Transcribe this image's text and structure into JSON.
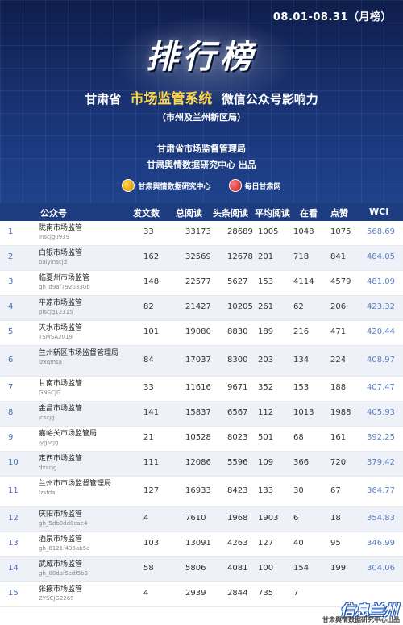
{
  "header": {
    "date_range": "08.01-08.31（月榜）",
    "big_title": "排行榜",
    "subtitle_left": "甘肃省",
    "subtitle_highlight": "市场监管系统",
    "subtitle_right": "微信公众号影响力",
    "subtitle2": "（市州及兰州新区局）",
    "org1": "甘肃省市场监督管理局",
    "org2": "甘肃舆情数据研究中心 出品",
    "logo1": "甘肃舆情数据研究中心",
    "logo2": "每日甘肃网"
  },
  "table": {
    "columns": [
      "公众号",
      "发文数",
      "总阅读",
      "头条阅读",
      "平均阅读",
      "在看",
      "点赞",
      "WCI"
    ],
    "rows": [
      {
        "rank": "1",
        "name": "陇南市场监管",
        "id": "lnscjg0939",
        "fw": "33",
        "zy": "33173",
        "tt": "28689",
        "pj": "1005",
        "zk": "1048",
        "dz": "1075",
        "wci": "568.69"
      },
      {
        "rank": "2",
        "name": "白银市场监管",
        "id": "baiyinscjd",
        "fw": "162",
        "zy": "32569",
        "tt": "12678",
        "pj": "201",
        "zk": "718",
        "dz": "841",
        "wci": "484.05"
      },
      {
        "rank": "3",
        "name": "临夏州市场监管",
        "id": "gh_d9af7920330b",
        "fw": "148",
        "zy": "22577",
        "tt": "5627",
        "pj": "153",
        "zk": "4114",
        "dz": "4579",
        "wci": "481.09"
      },
      {
        "rank": "4",
        "name": "平凉市场监管",
        "id": "plscjg12315",
        "fw": "82",
        "zy": "21427",
        "tt": "10205",
        "pj": "261",
        "zk": "62",
        "dz": "206",
        "wci": "423.32"
      },
      {
        "rank": "5",
        "name": "天水市场监管",
        "id": "TSMSA2019",
        "fw": "101",
        "zy": "19080",
        "tt": "8830",
        "pj": "189",
        "zk": "216",
        "dz": "471",
        "wci": "420.44"
      },
      {
        "rank": "6",
        "name": "兰州新区市场监督管理局",
        "id": "lzxqmsa",
        "fw": "84",
        "zy": "17037",
        "tt": "8300",
        "pj": "203",
        "zk": "134",
        "dz": "224",
        "wci": "408.97"
      },
      {
        "rank": "7",
        "name": "甘南市场监管",
        "id": "GNSCJG",
        "fw": "33",
        "zy": "11616",
        "tt": "9671",
        "pj": "352",
        "zk": "153",
        "dz": "188",
        "wci": "407.47"
      },
      {
        "rank": "8",
        "name": "金昌市场监管",
        "id": "jcscjg",
        "fw": "141",
        "zy": "15837",
        "tt": "6567",
        "pj": "112",
        "zk": "1013",
        "dz": "1988",
        "wci": "405.93"
      },
      {
        "rank": "9",
        "name": "嘉峪关市场监管局",
        "id": "jygscjg",
        "fw": "21",
        "zy": "10528",
        "tt": "8023",
        "pj": "501",
        "zk": "68",
        "dz": "161",
        "wci": "392.25"
      },
      {
        "rank": "10",
        "name": "定西市场监管",
        "id": "dxscjg",
        "fw": "111",
        "zy": "12086",
        "tt": "5596",
        "pj": "109",
        "zk": "366",
        "dz": "720",
        "wci": "379.42"
      },
      {
        "rank": "11",
        "name": "兰州市市场监督管理局",
        "id": "lzsfda",
        "fw": "127",
        "zy": "16933",
        "tt": "8423",
        "pj": "133",
        "zk": "30",
        "dz": "67",
        "wci": "364.77"
      },
      {
        "rank": "12",
        "name": "庆阳市场监管",
        "id": "gh_5db8dd8cae4",
        "fw": "4",
        "zy": "7610",
        "tt": "1968",
        "pj": "1903",
        "zk": "6",
        "dz": "18",
        "wci": "354.83"
      },
      {
        "rank": "13",
        "name": "酒泉市场监管",
        "id": "gh_6121f435ab5c",
        "fw": "103",
        "zy": "13091",
        "tt": "4263",
        "pj": "127",
        "zk": "40",
        "dz": "95",
        "wci": "346.99"
      },
      {
        "rank": "14",
        "name": "武威市场监管",
        "id": "gh_08daf5cdf5b3",
        "fw": "58",
        "zy": "5806",
        "tt": "4081",
        "pj": "100",
        "zk": "154",
        "dz": "199",
        "wci": "304.06"
      },
      {
        "rank": "15",
        "name": "张掖市场监管",
        "id": "ZYSCJG2269",
        "fw": "4",
        "zy": "2939",
        "tt": "2844",
        "pj": "735",
        "zk": "7",
        "dz": "",
        "wci": ""
      }
    ]
  },
  "watermark": "信息兰州",
  "footer": "甘肃舆情数据研究中心出品"
}
